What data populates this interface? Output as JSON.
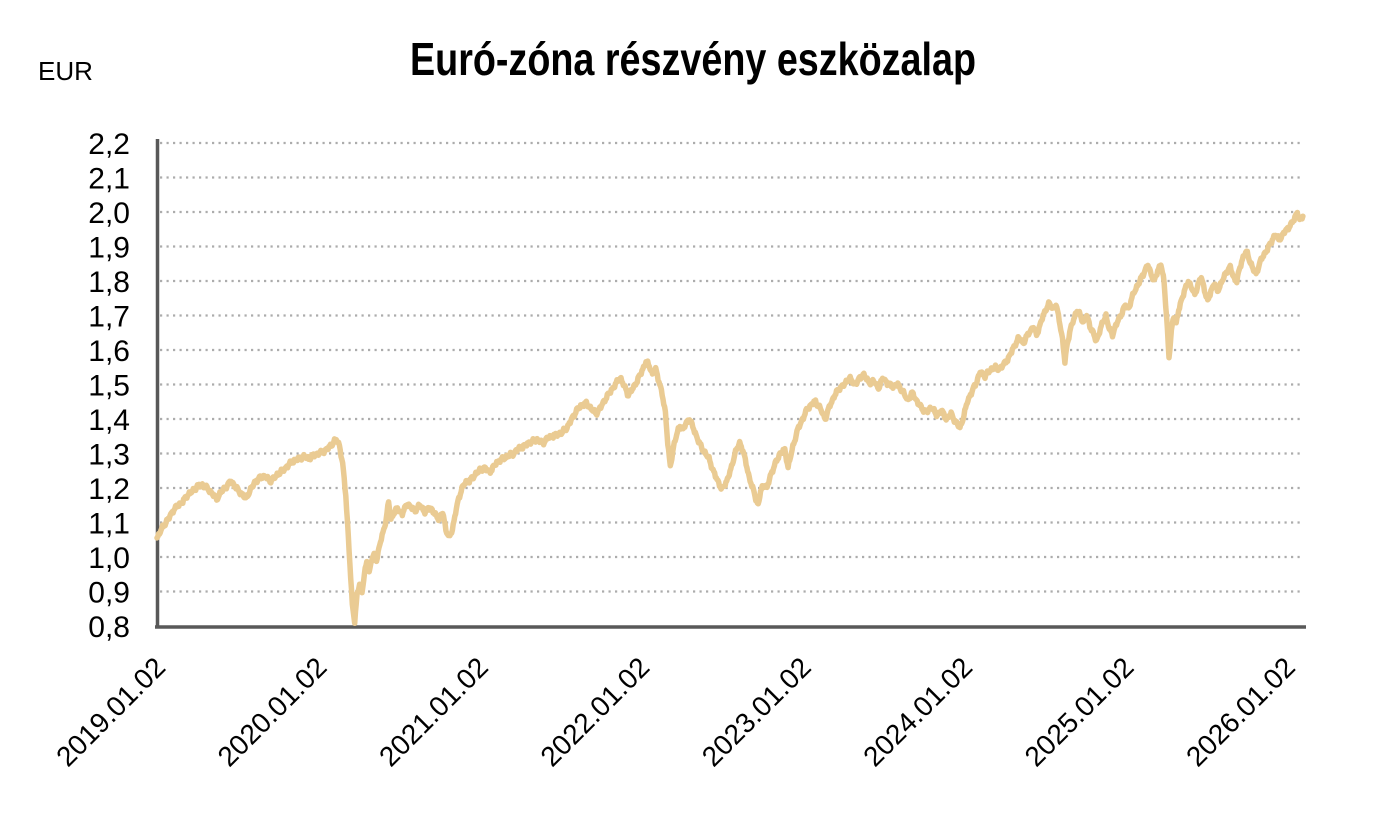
{
  "style": {
    "background": "#ffffff",
    "series_color": "#EACB93",
    "axis_color": "#595959",
    "grid_color": "#ACACAC",
    "text_color": "#000000"
  },
  "chart_data": {
    "type": "line",
    "title": "Euró-zóna részvény eszközalap",
    "ylabel": "EUR",
    "xlabel": "",
    "legend": "none",
    "grid": "horizontal-dotted",
    "ylim": [
      0.8,
      2.2
    ],
    "y_tick_step": 0.1,
    "y_tick_labels": [
      "2,2",
      "2,1",
      "2,0",
      "1,9",
      "1,8",
      "1,7",
      "1,6",
      "1,5",
      "1,4",
      "1,3",
      "1,2",
      "1,1",
      "1,0",
      "0,9",
      "0,8"
    ],
    "x_tick_labels": [
      "2019.01.02",
      "2020.01.02",
      "2021.01.02",
      "2022.01.02",
      "2023.01.02",
      "2024.01.02",
      "2025.01.02",
      "2026.01.02"
    ],
    "x_range_years": [
      0,
      7.1
    ],
    "series": [
      {
        "name": "Euró-zóna részvény eszközalap",
        "color": "#EACB93",
        "points": [
          [
            0,
            1.055
          ],
          [
            0.04,
            1.09
          ],
          [
            0.07,
            1.11
          ],
          [
            0.1,
            1.135
          ],
          [
            0.13,
            1.15
          ],
          [
            0.16,
            1.16
          ],
          [
            0.19,
            1.18
          ],
          [
            0.22,
            1.19
          ],
          [
            0.25,
            1.205
          ],
          [
            0.28,
            1.21
          ],
          [
            0.31,
            1.2
          ],
          [
            0.34,
            1.185
          ],
          [
            0.37,
            1.168
          ],
          [
            0.4,
            1.19
          ],
          [
            0.43,
            1.205
          ],
          [
            0.46,
            1.22
          ],
          [
            0.49,
            1.2
          ],
          [
            0.52,
            1.185
          ],
          [
            0.55,
            1.17
          ],
          [
            0.58,
            1.195
          ],
          [
            0.61,
            1.22
          ],
          [
            0.64,
            1.23
          ],
          [
            0.67,
            1.235
          ],
          [
            0.7,
            1.22
          ],
          [
            0.73,
            1.23
          ],
          [
            0.76,
            1.245
          ],
          [
            0.79,
            1.255
          ],
          [
            0.82,
            1.27
          ],
          [
            0.85,
            1.28
          ],
          [
            0.88,
            1.285
          ],
          [
            0.91,
            1.29
          ],
          [
            0.94,
            1.285
          ],
          [
            0.97,
            1.295
          ],
          [
            1.0,
            1.3
          ],
          [
            1.03,
            1.305
          ],
          [
            1.06,
            1.315
          ],
          [
            1.09,
            1.33
          ],
          [
            1.11,
            1.34
          ],
          [
            1.13,
            1.325
          ],
          [
            1.15,
            1.27
          ],
          [
            1.17,
            1.18
          ],
          [
            1.19,
            1.02
          ],
          [
            1.21,
            0.86
          ],
          [
            1.225,
            0.815
          ],
          [
            1.24,
            0.89
          ],
          [
            1.255,
            0.92
          ],
          [
            1.27,
            0.9
          ],
          [
            1.285,
            0.95
          ],
          [
            1.3,
            0.985
          ],
          [
            1.315,
            0.955
          ],
          [
            1.33,
            0.995
          ],
          [
            1.345,
            1.005
          ],
          [
            1.36,
            0.99
          ],
          [
            1.38,
            1.035
          ],
          [
            1.4,
            1.07
          ],
          [
            1.42,
            1.11
          ],
          [
            1.435,
            1.16
          ],
          [
            1.45,
            1.11
          ],
          [
            1.47,
            1.13
          ],
          [
            1.49,
            1.14
          ],
          [
            1.52,
            1.125
          ],
          [
            1.55,
            1.155
          ],
          [
            1.57,
            1.145
          ],
          [
            1.6,
            1.135
          ],
          [
            1.63,
            1.15
          ],
          [
            1.66,
            1.13
          ],
          [
            1.69,
            1.145
          ],
          [
            1.72,
            1.125
          ],
          [
            1.75,
            1.11
          ],
          [
            1.77,
            1.13
          ],
          [
            1.79,
            1.08
          ],
          [
            1.81,
            1.055
          ],
          [
            1.83,
            1.08
          ],
          [
            1.85,
            1.13
          ],
          [
            1.87,
            1.17
          ],
          [
            1.89,
            1.2
          ],
          [
            1.91,
            1.215
          ],
          [
            1.93,
            1.22
          ],
          [
            1.96,
            1.23
          ],
          [
            1.98,
            1.245
          ],
          [
            2.0,
            1.25
          ],
          [
            2.03,
            1.26
          ],
          [
            2.06,
            1.245
          ],
          [
            2.09,
            1.265
          ],
          [
            2.12,
            1.28
          ],
          [
            2.15,
            1.285
          ],
          [
            2.18,
            1.295
          ],
          [
            2.21,
            1.3
          ],
          [
            2.24,
            1.315
          ],
          [
            2.27,
            1.32
          ],
          [
            2.3,
            1.33
          ],
          [
            2.33,
            1.335
          ],
          [
            2.36,
            1.34
          ],
          [
            2.39,
            1.33
          ],
          [
            2.42,
            1.345
          ],
          [
            2.45,
            1.35
          ],
          [
            2.48,
            1.355
          ],
          [
            2.51,
            1.36
          ],
          [
            2.54,
            1.375
          ],
          [
            2.57,
            1.4
          ],
          [
            2.6,
            1.425
          ],
          [
            2.63,
            1.44
          ],
          [
            2.66,
            1.445
          ],
          [
            2.69,
            1.43
          ],
          [
            2.72,
            1.415
          ],
          [
            2.75,
            1.435
          ],
          [
            2.78,
            1.46
          ],
          [
            2.81,
            1.48
          ],
          [
            2.84,
            1.5
          ],
          [
            2.87,
            1.52
          ],
          [
            2.9,
            1.49
          ],
          [
            2.92,
            1.47
          ],
          [
            2.95,
            1.49
          ],
          [
            2.98,
            1.515
          ],
          [
            3.01,
            1.545
          ],
          [
            3.03,
            1.565
          ],
          [
            3.05,
            1.555
          ],
          [
            3.07,
            1.53
          ],
          [
            3.09,
            1.545
          ],
          [
            3.11,
            1.51
          ],
          [
            3.13,
            1.47
          ],
          [
            3.15,
            1.42
          ],
          [
            3.165,
            1.33
          ],
          [
            3.18,
            1.26
          ],
          [
            3.2,
            1.32
          ],
          [
            3.22,
            1.355
          ],
          [
            3.24,
            1.38
          ],
          [
            3.26,
            1.37
          ],
          [
            3.28,
            1.39
          ],
          [
            3.3,
            1.4
          ],
          [
            3.33,
            1.365
          ],
          [
            3.36,
            1.33
          ],
          [
            3.39,
            1.305
          ],
          [
            3.42,
            1.285
          ],
          [
            3.45,
            1.245
          ],
          [
            3.48,
            1.215
          ],
          [
            3.5,
            1.195
          ],
          [
            3.53,
            1.22
          ],
          [
            3.56,
            1.26
          ],
          [
            3.58,
            1.3
          ],
          [
            3.61,
            1.33
          ],
          [
            3.63,
            1.31
          ],
          [
            3.65,
            1.27
          ],
          [
            3.67,
            1.23
          ],
          [
            3.69,
            1.2
          ],
          [
            3.71,
            1.17
          ],
          [
            3.725,
            1.15
          ],
          [
            3.74,
            1.19
          ],
          [
            3.76,
            1.21
          ],
          [
            3.78,
            1.2
          ],
          [
            3.8,
            1.235
          ],
          [
            3.83,
            1.27
          ],
          [
            3.86,
            1.3
          ],
          [
            3.89,
            1.31
          ],
          [
            3.91,
            1.26
          ],
          [
            3.94,
            1.32
          ],
          [
            3.97,
            1.37
          ],
          [
            4.0,
            1.4
          ],
          [
            4.03,
            1.43
          ],
          [
            4.06,
            1.445
          ],
          [
            4.08,
            1.45
          ],
          [
            4.11,
            1.43
          ],
          [
            4.14,
            1.4
          ],
          [
            4.17,
            1.44
          ],
          [
            4.2,
            1.47
          ],
          [
            4.23,
            1.49
          ],
          [
            4.26,
            1.5
          ],
          [
            4.29,
            1.52
          ],
          [
            4.32,
            1.5
          ],
          [
            4.35,
            1.515
          ],
          [
            4.38,
            1.53
          ],
          [
            4.41,
            1.505
          ],
          [
            4.44,
            1.51
          ],
          [
            4.47,
            1.49
          ],
          [
            4.5,
            1.52
          ],
          [
            4.53,
            1.5
          ],
          [
            4.56,
            1.495
          ],
          [
            4.59,
            1.5
          ],
          [
            4.62,
            1.48
          ],
          [
            4.65,
            1.455
          ],
          [
            4.68,
            1.475
          ],
          [
            4.71,
            1.45
          ],
          [
            4.74,
            1.43
          ],
          [
            4.77,
            1.42
          ],
          [
            4.8,
            1.435
          ],
          [
            4.83,
            1.41
          ],
          [
            4.86,
            1.425
          ],
          [
            4.89,
            1.4
          ],
          [
            4.92,
            1.415
          ],
          [
            4.95,
            1.39
          ],
          [
            4.975,
            1.375
          ],
          [
            5.0,
            1.41
          ],
          [
            5.02,
            1.45
          ],
          [
            5.05,
            1.48
          ],
          [
            5.08,
            1.51
          ],
          [
            5.1,
            1.535
          ],
          [
            5.13,
            1.525
          ],
          [
            5.16,
            1.54
          ],
          [
            5.19,
            1.55
          ],
          [
            5.22,
            1.545
          ],
          [
            5.25,
            1.56
          ],
          [
            5.28,
            1.58
          ],
          [
            5.31,
            1.61
          ],
          [
            5.34,
            1.635
          ],
          [
            5.37,
            1.62
          ],
          [
            5.4,
            1.65
          ],
          [
            5.43,
            1.665
          ],
          [
            5.45,
            1.645
          ],
          [
            5.47,
            1.67
          ],
          [
            5.49,
            1.7
          ],
          [
            5.51,
            1.72
          ],
          [
            5.53,
            1.735
          ],
          [
            5.55,
            1.72
          ],
          [
            5.57,
            1.73
          ],
          [
            5.59,
            1.69
          ],
          [
            5.61,
            1.63
          ],
          [
            5.625,
            1.565
          ],
          [
            5.64,
            1.62
          ],
          [
            5.66,
            1.66
          ],
          [
            5.68,
            1.69
          ],
          [
            5.7,
            1.715
          ],
          [
            5.72,
            1.7
          ],
          [
            5.74,
            1.68
          ],
          [
            5.76,
            1.7
          ],
          [
            5.78,
            1.67
          ],
          [
            5.8,
            1.65
          ],
          [
            5.82,
            1.625
          ],
          [
            5.84,
            1.655
          ],
          [
            5.86,
            1.68
          ],
          [
            5.88,
            1.7
          ],
          [
            5.9,
            1.66
          ],
          [
            5.92,
            1.645
          ],
          [
            5.94,
            1.67
          ],
          [
            5.96,
            1.69
          ],
          [
            5.98,
            1.71
          ],
          [
            6.0,
            1.73
          ],
          [
            6.02,
            1.72
          ],
          [
            6.04,
            1.75
          ],
          [
            6.06,
            1.775
          ],
          [
            6.08,
            1.79
          ],
          [
            6.1,
            1.81
          ],
          [
            6.12,
            1.83
          ],
          [
            6.14,
            1.845
          ],
          [
            6.16,
            1.82
          ],
          [
            6.18,
            1.8
          ],
          [
            6.2,
            1.83
          ],
          [
            6.22,
            1.85
          ],
          [
            6.24,
            1.795
          ],
          [
            6.255,
            1.7
          ],
          [
            6.27,
            1.575
          ],
          [
            6.285,
            1.655
          ],
          [
            6.3,
            1.7
          ],
          [
            6.315,
            1.675
          ],
          [
            6.33,
            1.715
          ],
          [
            6.35,
            1.75
          ],
          [
            6.37,
            1.775
          ],
          [
            6.39,
            1.8
          ],
          [
            6.41,
            1.78
          ],
          [
            6.43,
            1.76
          ],
          [
            6.45,
            1.79
          ],
          [
            6.47,
            1.81
          ],
          [
            6.49,
            1.775
          ],
          [
            6.51,
            1.74
          ],
          [
            6.53,
            1.77
          ],
          [
            6.55,
            1.795
          ],
          [
            6.57,
            1.77
          ],
          [
            6.59,
            1.79
          ],
          [
            6.61,
            1.81
          ],
          [
            6.63,
            1.83
          ],
          [
            6.65,
            1.84
          ],
          [
            6.67,
            1.81
          ],
          [
            6.69,
            1.8
          ],
          [
            6.71,
            1.84
          ],
          [
            6.73,
            1.87
          ],
          [
            6.75,
            1.885
          ],
          [
            6.77,
            1.86
          ],
          [
            6.79,
            1.835
          ],
          [
            6.81,
            1.82
          ],
          [
            6.83,
            1.85
          ],
          [
            6.85,
            1.87
          ],
          [
            6.87,
            1.885
          ],
          [
            6.89,
            1.9
          ],
          [
            6.91,
            1.92
          ],
          [
            6.93,
            1.935
          ],
          [
            6.95,
            1.92
          ],
          [
            6.97,
            1.93
          ],
          [
            6.99,
            1.945
          ],
          [
            7.01,
            1.955
          ],
          [
            7.03,
            1.965
          ],
          [
            7.05,
            1.985
          ],
          [
            7.065,
            2.0
          ],
          [
            7.08,
            1.975
          ],
          [
            7.1,
            1.99
          ]
        ]
      }
    ]
  }
}
